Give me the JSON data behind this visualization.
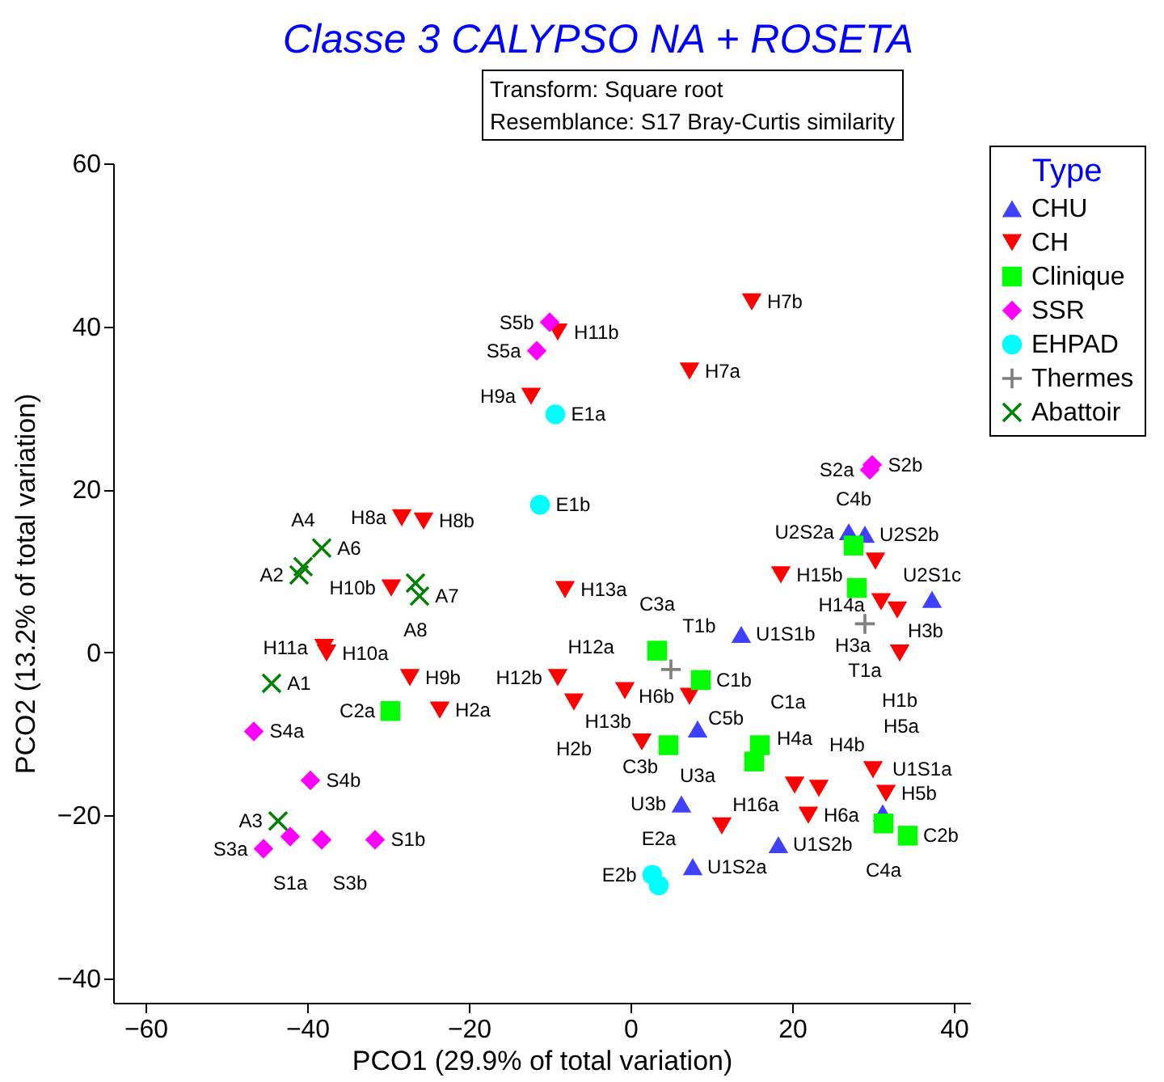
{
  "chart_data": {
    "type": "scatter",
    "title": "Classe 3 CALYPSO NA + ROSETA",
    "annotations": [
      "Transform: Square root",
      "Resemblance: S17 Bray-Curtis similarity"
    ],
    "xlabel": "PCO1 (29.9% of total variation)",
    "ylabel": "PCO2 (13.2% of total variation)",
    "legend_title": "Type",
    "xlim": [
      -64,
      42
    ],
    "xticks": [
      -60,
      -40,
      -20,
      0,
      20,
      40
    ],
    "ylim": [
      -43,
      60
    ],
    "yticks": [
      -40,
      -20,
      0,
      20,
      40,
      60
    ],
    "grid": false,
    "legend": "top right",
    "series": [
      {
        "name": "CHU",
        "color": "#4040ff",
        "marker": "triangle-up",
        "x": [
          13.7,
          8.3,
          6.3,
          7.7,
          18.3,
          31.2,
          27,
          29,
          37.3
        ],
        "values": [
          2.2,
          -9.4,
          -18.6,
          -26.3,
          -23.6,
          -19.7,
          14.8,
          14.5,
          6.5
        ],
        "value_labels": [
          "U1S1b",
          "U3a",
          "U3b",
          "U1S2a",
          "U1S2b",
          "U1S1a",
          "U2S2a",
          "U2S2b",
          "U2S1c"
        ]
      },
      {
        "name": "CH",
        "color": "#ff0000",
        "marker": "triangle-down",
        "x": [
          15,
          7.3,
          -9,
          -12.3,
          -8.1,
          18.6,
          -28.3,
          -25.6,
          -29.6,
          -37.9,
          -37.6,
          -27.3,
          -23.6,
          -9,
          -7,
          -0.7,
          7.3,
          1.4,
          11.3,
          20.3,
          23.3,
          22,
          30,
          31.6,
          30.3,
          31,
          33,
          33.3
        ],
        "values": [
          43,
          34.5,
          39.3,
          31.4,
          7.7,
          9.5,
          16.5,
          16.1,
          7.9,
          0.6,
          -0.1,
          -3.1,
          -7.1,
          -3.1,
          -6.1,
          -4.7,
          -5.4,
          -11,
          -21.3,
          -16.3,
          -16.7,
          -20,
          -14.4,
          -17.3,
          11.2,
          6.2,
          5.2,
          -0.1
        ],
        "value_labels": [
          "H7b",
          "H7a",
          "H11b",
          "H9a",
          "H13a",
          "H15b",
          "H8a",
          "H8b",
          "H10b",
          "H11a",
          "H10a",
          "H9b",
          "H2a",
          "H12b",
          "H2b",
          "H12a",
          "H6b",
          "H13b",
          "H16a",
          "H4a",
          "H4b",
          "H6a",
          "H5a",
          "H5b",
          "H14a",
          "H3a",
          "H3b",
          "H1b"
        ]
      },
      {
        "name": "Clinique",
        "color": "#00ff00",
        "marker": "square",
        "x": [
          -29.7,
          3.3,
          8.7,
          4.7,
          16,
          15.3,
          27.6,
          28,
          31.3,
          34.3
        ],
        "values": [
          -7.2,
          0.2,
          -3.4,
          -11.4,
          -11.4,
          -13.4,
          13.1,
          7.9,
          -21,
          -22.5
        ],
        "value_labels": [
          "C2a",
          "C3a",
          "C1b",
          "C3b",
          "C1a",
          "C5b",
          "C4b",
          null,
          "C4a",
          "C2b"
        ]
      },
      {
        "name": "SSR",
        "color": "#ff00ff",
        "marker": "diamond",
        "x": [
          -10,
          -11.6,
          29.9,
          29.6,
          -46.6,
          -39.6,
          -45.4,
          -42.1,
          -38.2,
          -31.6
        ],
        "values": [
          40.5,
          37,
          23,
          22.4,
          -9.7,
          -15.7,
          -24.1,
          -22.6,
          -23,
          -23
        ],
        "value_labels": [
          "S5b",
          "S5a",
          "S2b",
          "S2a",
          "S4a",
          "S4b",
          "S3a",
          "S1a",
          "S3b",
          "S1b"
        ]
      },
      {
        "name": "EHPAD",
        "color": "#00ffff",
        "marker": "circle",
        "x": [
          -9.3,
          -11.2,
          2.7,
          3.5
        ],
        "values": [
          29.2,
          18.1,
          -27.3,
          -28.6
        ],
        "value_labels": [
          "E1a",
          "E1b",
          "E2b",
          "E2a"
        ]
      },
      {
        "name": "Thermes",
        "color": "#808080",
        "marker": "plus",
        "x": [
          5,
          29
        ],
        "values": [
          -2.1,
          3.5
        ],
        "value_labels": [
          "T1b",
          "T1a"
        ]
      },
      {
        "name": "Abattoir",
        "color": "#008000",
        "marker": "x",
        "x": [
          -41,
          -40.5,
          -38.2,
          -26.6,
          -26.1,
          -44.4,
          -43.6
        ],
        "values": [
          9.5,
          10.5,
          12.8,
          8.5,
          6.9,
          -3.8,
          -20.7
        ],
        "value_labels": [
          "A2",
          "A4",
          "A6",
          "A8",
          "A7",
          "A1",
          "A3"
        ]
      }
    ]
  }
}
